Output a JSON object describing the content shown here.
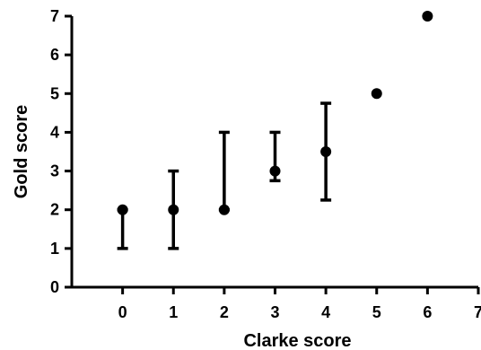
{
  "chart_data": {
    "type": "scatter",
    "title": "",
    "xlabel": "Clarke score",
    "ylabel": "Gold score",
    "xlim": [
      -1,
      7
    ],
    "ylim": [
      0,
      7
    ],
    "x_ticks": [
      0,
      1,
      2,
      3,
      4,
      5,
      6,
      7
    ],
    "y_ticks": [
      0,
      1,
      2,
      3,
      4,
      5,
      6,
      7
    ],
    "grid": false,
    "legend": "none",
    "colors": {
      "marker": "#000000",
      "axis": "#000000",
      "background": "#ffffff"
    },
    "series": [
      {
        "points": [
          {
            "x": 0,
            "y": 2,
            "y_low": 1,
            "y_high": 2
          },
          {
            "x": 1,
            "y": 2,
            "y_low": 1,
            "y_high": 3
          },
          {
            "x": 2,
            "y": 2,
            "y_low": 2,
            "y_high": 4
          },
          {
            "x": 3,
            "y": 3,
            "y_low": 2.75,
            "y_high": 4
          },
          {
            "x": 4,
            "y": 3.5,
            "y_low": 2.25,
            "y_high": 4.75
          },
          {
            "x": 5,
            "y": 5
          },
          {
            "x": 6,
            "y": 7
          }
        ]
      }
    ]
  }
}
